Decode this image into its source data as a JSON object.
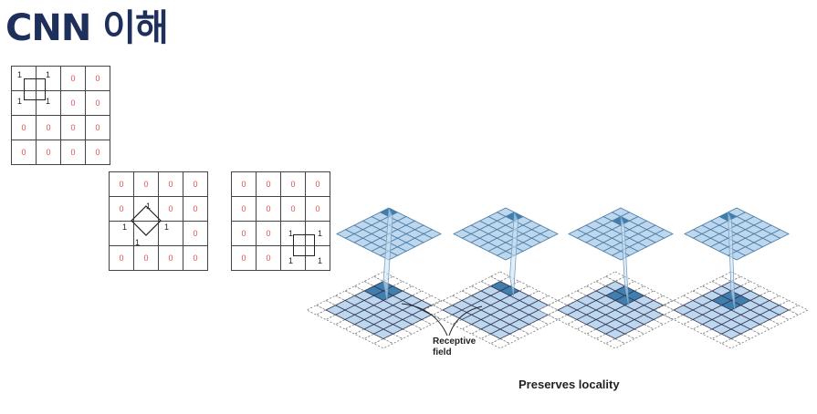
{
  "title": "CNN 이해",
  "matrices": [
    {
      "id": "m1",
      "cells": [
        [
          "1",
          "1",
          "0",
          "0"
        ],
        [
          "1",
          "1",
          "0",
          "0"
        ],
        [
          "0",
          "0",
          "0",
          "0"
        ],
        [
          "0",
          "0",
          "0",
          "0"
        ]
      ]
    },
    {
      "id": "m2",
      "cells": [
        [
          "0",
          "0",
          "0",
          "0"
        ],
        [
          "0",
          "1",
          "0",
          "0"
        ],
        [
          "1",
          "",
          "1",
          "0"
        ],
        [
          "0",
          "0",
          "0",
          "0"
        ]
      ]
    },
    {
      "id": "m3",
      "cells": [
        [
          "0",
          "0",
          "0",
          "0"
        ],
        [
          "0",
          "0",
          "0",
          "0"
        ],
        [
          "0",
          "0",
          "1",
          "1"
        ],
        [
          "0",
          "0",
          "1",
          "1"
        ]
      ]
    }
  ],
  "diagram": {
    "receptive_field_label": "Receptive\nfield",
    "caption": "Preserves locality"
  }
}
